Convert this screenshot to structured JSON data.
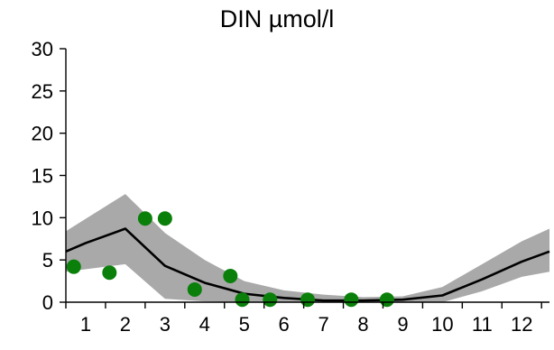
{
  "chart_data": {
    "type": "line",
    "title": "DIN µmol/l",
    "xlabel": "",
    "ylabel": "",
    "xlim": [
      0.5,
      12.7
    ],
    "ylim": [
      0,
      30
    ],
    "y_ticks": [
      0,
      5,
      10,
      15,
      20,
      25,
      30
    ],
    "x_ticks": [
      1,
      2,
      3,
      4,
      5,
      6,
      7,
      8,
      9,
      10,
      11,
      12
    ],
    "grid": false,
    "legend": "none",
    "colors": {
      "band": "#a9a9a9",
      "line": "#000000",
      "points": "#0a7f0a"
    },
    "series": [
      {
        "kind": "band",
        "x": [
          0.5,
          2.0,
          3.0,
          4.0,
          5.0,
          6.0,
          7.0,
          8.0,
          9.0,
          10.0,
          11.0,
          12.0,
          12.7
        ],
        "upper": [
          8.4,
          12.8,
          8.2,
          5.0,
          2.5,
          1.4,
          0.9,
          0.6,
          0.7,
          1.8,
          4.5,
          7.2,
          8.7
        ],
        "lower": [
          3.6,
          4.5,
          0.4,
          0.1,
          0.0,
          0.0,
          0.0,
          0.0,
          0.0,
          0.0,
          1.3,
          3.0,
          3.6
        ]
      },
      {
        "kind": "line",
        "x": [
          0.5,
          1.0,
          2.0,
          3.0,
          4.0,
          5.0,
          6.0,
          7.0,
          8.0,
          9.0,
          10.0,
          11.0,
          12.0,
          12.7
        ],
        "y": [
          6.0,
          7.0,
          8.7,
          4.3,
          2.3,
          1.0,
          0.5,
          0.2,
          0.2,
          0.3,
          0.8,
          2.7,
          4.8,
          6.0
        ]
      },
      {
        "kind": "scatter",
        "x": [
          0.7,
          1.6,
          2.5,
          3.0,
          3.75,
          4.65,
          4.95,
          5.65,
          6.6,
          7.7,
          8.6
        ],
        "y": [
          4.2,
          3.5,
          9.9,
          9.9,
          1.5,
          3.1,
          0.3,
          0.3,
          0.3,
          0.3,
          0.3
        ]
      }
    ]
  }
}
